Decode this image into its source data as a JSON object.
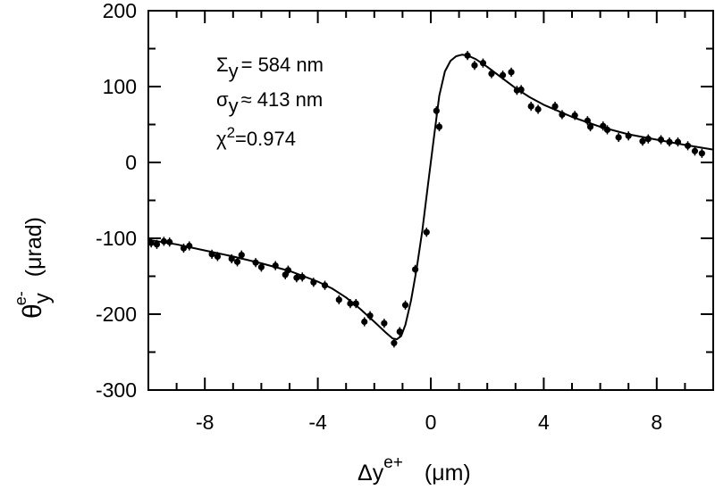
{
  "chart_data": {
    "type": "scatter",
    "title": "",
    "xlabel": "Δy",
    "xlabel_sup": "e+",
    "xlabel_unit": "(μm)",
    "ylabel": "θ",
    "ylabel_sub": "y",
    "ylabel_sup": "e-",
    "ylabel_unit": "(μrad)",
    "xlim": [
      -10,
      10
    ],
    "ylim": [
      -300,
      200
    ],
    "x_ticks": [
      -8,
      -4,
      0,
      4,
      8
    ],
    "x_tick_labels": [
      "-8",
      "-4",
      "0",
      "4",
      "8"
    ],
    "y_ticks": [
      -300,
      -200,
      -100,
      0,
      100,
      200
    ],
    "y_tick_labels": [
      "-300",
      "-200",
      "-100",
      "0",
      "100",
      "200"
    ],
    "grid": false,
    "annotations": [
      {
        "symbol": "Σ",
        "sub": "y",
        "sup": "",
        "text": "= 584 nm"
      },
      {
        "symbol": "σ",
        "sub": "y",
        "sup": "",
        "text": "≈ 413 nm"
      },
      {
        "symbol": "χ",
        "sub": "",
        "sup": "2",
        "text": "=0.974"
      }
    ],
    "series": [
      {
        "kind": "points_with_errorbars",
        "points": [
          {
            "x": -9.9,
            "y": -106
          },
          {
            "x": -9.7,
            "y": -108
          },
          {
            "x": -9.45,
            "y": -104
          },
          {
            "x": -9.25,
            "y": -105
          },
          {
            "x": -8.75,
            "y": -113
          },
          {
            "x": -8.55,
            "y": -110
          },
          {
            "x": -7.75,
            "y": -121
          },
          {
            "x": -7.55,
            "y": -124
          },
          {
            "x": -7.05,
            "y": -127
          },
          {
            "x": -6.85,
            "y": -131
          },
          {
            "x": -6.7,
            "y": -122
          },
          {
            "x": -6.2,
            "y": -132
          },
          {
            "x": -6.0,
            "y": -138
          },
          {
            "x": -5.5,
            "y": -136
          },
          {
            "x": -5.15,
            "y": -148
          },
          {
            "x": -5.05,
            "y": -142
          },
          {
            "x": -4.75,
            "y": -152
          },
          {
            "x": -4.55,
            "y": -151
          },
          {
            "x": -4.15,
            "y": -158
          },
          {
            "x": -3.75,
            "y": -162
          },
          {
            "x": -3.25,
            "y": -181
          },
          {
            "x": -2.85,
            "y": -186
          },
          {
            "x": -2.65,
            "y": -186
          },
          {
            "x": -2.35,
            "y": -210
          },
          {
            "x": -2.15,
            "y": -202
          },
          {
            "x": -1.65,
            "y": -212
          },
          {
            "x": -1.3,
            "y": -238
          },
          {
            "x": -1.1,
            "y": -223
          },
          {
            "x": -0.9,
            "y": -188
          },
          {
            "x": -0.55,
            "y": -141
          },
          {
            "x": -0.15,
            "y": -92
          },
          {
            "x": 0.2,
            "y": 68
          },
          {
            "x": 0.3,
            "y": 47
          },
          {
            "x": 1.3,
            "y": 141
          },
          {
            "x": 1.55,
            "y": 128
          },
          {
            "x": 1.85,
            "y": 131
          },
          {
            "x": 2.15,
            "y": 117
          },
          {
            "x": 2.55,
            "y": 115
          },
          {
            "x": 2.85,
            "y": 119
          },
          {
            "x": 3.05,
            "y": 95
          },
          {
            "x": 3.2,
            "y": 96
          },
          {
            "x": 3.55,
            "y": 74
          },
          {
            "x": 3.8,
            "y": 70
          },
          {
            "x": 4.4,
            "y": 74
          },
          {
            "x": 4.65,
            "y": 63
          },
          {
            "x": 5.1,
            "y": 62
          },
          {
            "x": 5.55,
            "y": 55
          },
          {
            "x": 5.65,
            "y": 47
          },
          {
            "x": 6.1,
            "y": 48
          },
          {
            "x": 6.25,
            "y": 43
          },
          {
            "x": 6.65,
            "y": 33
          },
          {
            "x": 7.0,
            "y": 35
          },
          {
            "x": 7.5,
            "y": 28
          },
          {
            "x": 7.7,
            "y": 31
          },
          {
            "x": 8.15,
            "y": 30
          },
          {
            "x": 8.45,
            "y": 27
          },
          {
            "x": 8.75,
            "y": 27
          },
          {
            "x": 9.1,
            "y": 22
          },
          {
            "x": 9.35,
            "y": 15
          },
          {
            "x": 9.6,
            "y": 12
          }
        ],
        "error": 6
      },
      {
        "kind": "fit_curve",
        "points": [
          {
            "x": -10.0,
            "y": -102
          },
          {
            "x": -9.0,
            "y": -108
          },
          {
            "x": -8.0,
            "y": -116
          },
          {
            "x": -7.0,
            "y": -124
          },
          {
            "x": -6.0,
            "y": -133
          },
          {
            "x": -5.0,
            "y": -143
          },
          {
            "x": -4.0,
            "y": -157
          },
          {
            "x": -3.5,
            "y": -166
          },
          {
            "x": -3.0,
            "y": -178
          },
          {
            "x": -2.5,
            "y": -193
          },
          {
            "x": -2.0,
            "y": -210
          },
          {
            "x": -1.6,
            "y": -224
          },
          {
            "x": -1.35,
            "y": -232
          },
          {
            "x": -1.2,
            "y": -233
          },
          {
            "x": -1.05,
            "y": -229
          },
          {
            "x": -0.9,
            "y": -214
          },
          {
            "x": -0.7,
            "y": -182
          },
          {
            "x": -0.5,
            "y": -140
          },
          {
            "x": -0.3,
            "y": -90
          },
          {
            "x": -0.1,
            "y": -30
          },
          {
            "x": 0.1,
            "y": 30
          },
          {
            "x": 0.3,
            "y": 88
          },
          {
            "x": 0.5,
            "y": 120
          },
          {
            "x": 0.7,
            "y": 134
          },
          {
            "x": 0.9,
            "y": 140
          },
          {
            "x": 1.1,
            "y": 142
          },
          {
            "x": 1.3,
            "y": 141
          },
          {
            "x": 1.6,
            "y": 136
          },
          {
            "x": 2.0,
            "y": 126
          },
          {
            "x": 2.5,
            "y": 112
          },
          {
            "x": 3.0,
            "y": 98
          },
          {
            "x": 3.5,
            "y": 86
          },
          {
            "x": 4.0,
            "y": 76
          },
          {
            "x": 5.0,
            "y": 60
          },
          {
            "x": 6.0,
            "y": 47
          },
          {
            "x": 7.0,
            "y": 37
          },
          {
            "x": 8.0,
            "y": 30
          },
          {
            "x": 9.0,
            "y": 23
          },
          {
            "x": 10.0,
            "y": 17
          }
        ]
      }
    ]
  }
}
